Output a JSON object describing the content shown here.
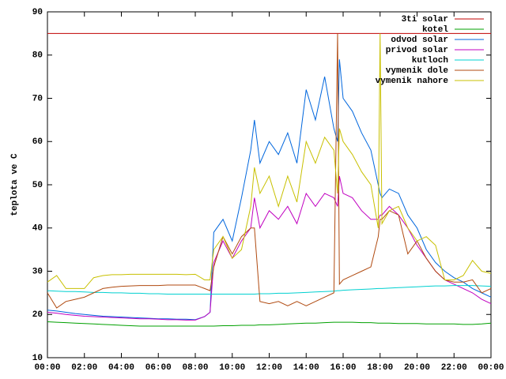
{
  "chart_data": {
    "type": "line",
    "y_label": "teplota ve C",
    "xlim": [
      0,
      24
    ],
    "ylim": [
      10,
      90
    ],
    "xticks": [
      {
        "value": 0,
        "label": "00:00"
      },
      {
        "value": 2,
        "label": "02:00"
      },
      {
        "value": 4,
        "label": "04:00"
      },
      {
        "value": 6,
        "label": "06:00"
      },
      {
        "value": 8,
        "label": "08:00"
      },
      {
        "value": 10,
        "label": "10:00"
      },
      {
        "value": 12,
        "label": "12:00"
      },
      {
        "value": 14,
        "label": "14:00"
      },
      {
        "value": 16,
        "label": "16:00"
      },
      {
        "value": 18,
        "label": "18:00"
      },
      {
        "value": 20,
        "label": "20:00"
      },
      {
        "value": 22,
        "label": "22:00"
      },
      {
        "value": 24,
        "label": "00:00"
      }
    ],
    "yticks": [
      10,
      20,
      30,
      40,
      50,
      60,
      70,
      80,
      90
    ],
    "grid": false,
    "legend": "top-right",
    "x": [
      0,
      0.5,
      1,
      1.5,
      2,
      2.5,
      3,
      3.5,
      4,
      4.5,
      5,
      5.5,
      6,
      6.5,
      7,
      7.5,
      8,
      8.5,
      8.8,
      9,
      9.5,
      10,
      10.5,
      11,
      11.2,
      11.5,
      12,
      12.5,
      13,
      13.5,
      14,
      14.5,
      15,
      15.5,
      15.7,
      15.8,
      16,
      16.5,
      17,
      17.5,
      17.9,
      18,
      18.1,
      18.5,
      19,
      19.5,
      20,
      20.5,
      21,
      21.5,
      22,
      22.5,
      23,
      23.5,
      24
    ],
    "series": [
      {
        "name": "3ti solar",
        "color": "#c00000",
        "values": [
          85,
          85,
          85,
          85,
          85,
          85,
          85,
          85,
          85,
          85,
          85,
          85,
          85,
          85,
          85,
          85,
          85,
          85,
          85,
          85,
          85,
          85,
          85,
          85,
          85,
          85,
          85,
          85,
          85,
          85,
          85,
          85,
          85,
          85,
          85,
          85,
          85,
          85,
          85,
          85,
          85,
          85,
          85,
          85,
          85,
          85,
          85,
          85,
          85,
          85,
          85,
          85,
          85,
          85,
          85
        ]
      },
      {
        "name": "kotel",
        "color": "#00a000",
        "values": [
          18.3,
          18.2,
          18.1,
          18,
          17.9,
          17.8,
          17.7,
          17.6,
          17.5,
          17.4,
          17.3,
          17.3,
          17.3,
          17.3,
          17.3,
          17.3,
          17.3,
          17.3,
          17.3,
          17.3,
          17.4,
          17.4,
          17.5,
          17.5,
          17.5,
          17.6,
          17.6,
          17.7,
          17.8,
          17.9,
          18,
          18,
          18.1,
          18.2,
          18.2,
          18.2,
          18.2,
          18.2,
          18.1,
          18.1,
          18,
          18,
          18,
          18,
          17.9,
          17.9,
          17.9,
          17.8,
          17.8,
          17.8,
          17.8,
          17.7,
          17.7,
          17.8,
          18
        ]
      },
      {
        "name": "odvod solar",
        "color": "#0066dd",
        "values": [
          21,
          20.8,
          20.5,
          20.2,
          20,
          19.8,
          19.6,
          19.5,
          19.4,
          19.3,
          19.2,
          19.1,
          19,
          19,
          18.9,
          18.9,
          18.8,
          19.5,
          20.5,
          39,
          42,
          37,
          47,
          58,
          65,
          55,
          60,
          57,
          62,
          55,
          72,
          65,
          75,
          63,
          60,
          79,
          70,
          67,
          62,
          58,
          50,
          48,
          47,
          49,
          48,
          43,
          40,
          35,
          32,
          30,
          28.5,
          27.5,
          26,
          25,
          24
        ]
      },
      {
        "name": "privod solar",
        "color": "#c000c0",
        "values": [
          20.5,
          20.3,
          20,
          19.8,
          19.6,
          19.5,
          19.4,
          19.3,
          19.2,
          19.1,
          19,
          19,
          18.9,
          18.8,
          18.8,
          18.7,
          18.7,
          19.5,
          20.5,
          32,
          37,
          33,
          37,
          40,
          47,
          40,
          44,
          42,
          45,
          41,
          48,
          45,
          48,
          47,
          45,
          52,
          48,
          47,
          44,
          42,
          42,
          43,
          43,
          45,
          43,
          40,
          36,
          33,
          30,
          28,
          27,
          26,
          25,
          23.5,
          22.5
        ]
      },
      {
        "name": "kutloch",
        "color": "#00d0d0",
        "values": [
          25.5,
          25.4,
          25.3,
          25.3,
          25.2,
          25.1,
          25.1,
          25,
          25,
          24.9,
          24.9,
          24.8,
          24.8,
          24.7,
          24.7,
          24.7,
          24.7,
          24.7,
          24.7,
          24.7,
          24.7,
          24.7,
          24.7,
          24.7,
          24.7,
          24.8,
          24.8,
          24.9,
          24.9,
          25,
          25.1,
          25.2,
          25.3,
          25.4,
          25.5,
          25.5,
          25.6,
          25.7,
          25.8,
          25.9,
          26,
          26,
          26,
          26.1,
          26.2,
          26.3,
          26.4,
          26.5,
          26.6,
          26.6,
          26.7,
          26.7,
          26.7,
          26.6,
          26.5
        ]
      },
      {
        "name": "vymenik dole",
        "color": "#b04a10",
        "values": [
          25,
          21.5,
          23,
          23.5,
          24,
          25,
          26,
          26.3,
          26.5,
          26.6,
          26.7,
          26.7,
          26.7,
          26.8,
          26.8,
          26.8,
          26.8,
          26,
          25.5,
          31,
          38,
          34,
          38,
          40,
          40,
          23,
          22.5,
          23,
          22,
          23,
          22,
          23,
          24,
          25,
          85,
          27,
          28,
          29,
          30,
          31,
          38,
          42,
          42,
          44,
          43,
          34,
          37,
          33,
          30,
          28,
          27.5,
          27.5,
          28,
          25,
          26
        ]
      },
      {
        "name": "vymenik nahore",
        "color": "#c8c000",
        "values": [
          27.5,
          29,
          26,
          26,
          26,
          28.5,
          29,
          29.2,
          29.2,
          29.3,
          29.3,
          29.3,
          29.3,
          29.3,
          29.3,
          29.2,
          29.3,
          28,
          28,
          35,
          38,
          33,
          35,
          45,
          54,
          48,
          52,
          45,
          52,
          46,
          60,
          55,
          61,
          58,
          48,
          63,
          60,
          57,
          53,
          50,
          40,
          85,
          41,
          44,
          45,
          40,
          37,
          38,
          36,
          28,
          28,
          29,
          32.5,
          30,
          29.5
        ]
      }
    ]
  }
}
